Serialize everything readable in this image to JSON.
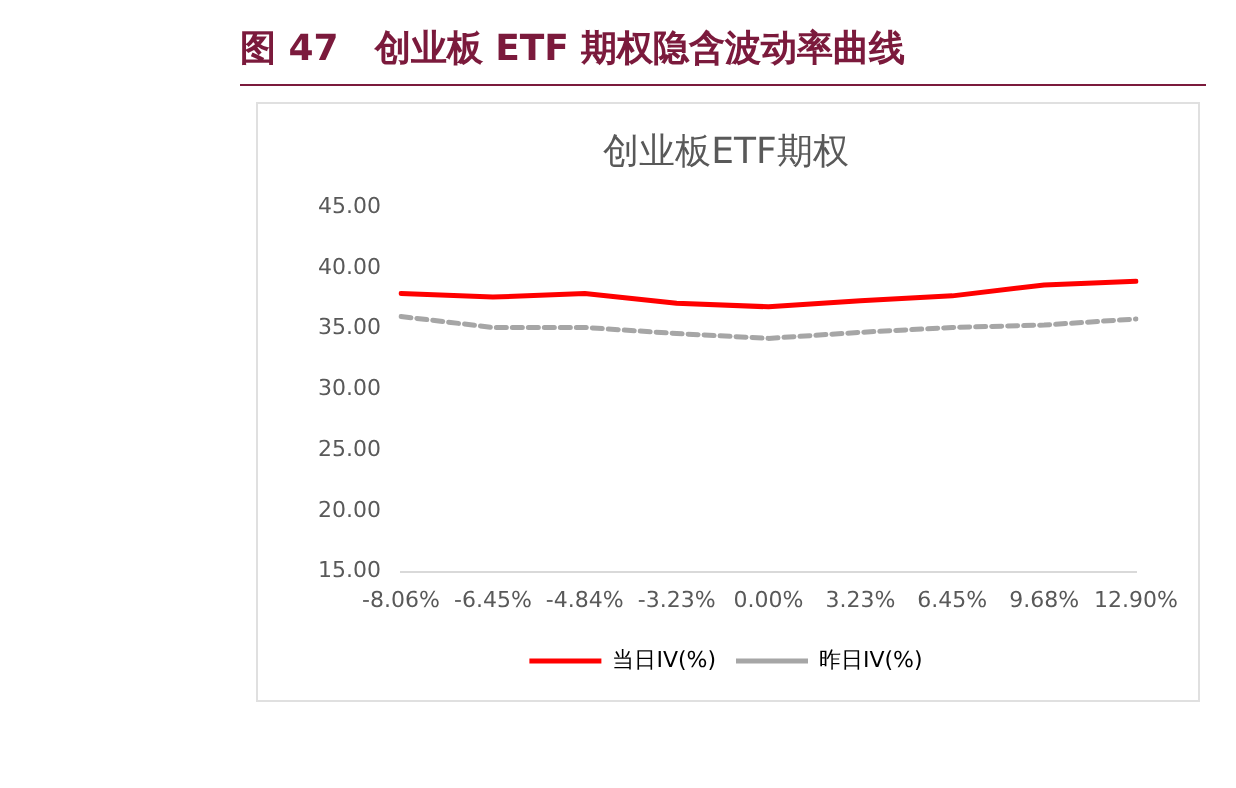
{
  "chart_data": {
    "type": "line",
    "title": "图 47　创业板 ETF 期权隐含波动率曲线",
    "subtitle": "创业板ETF期权",
    "categories": [
      "-8.06%",
      "-6.45%",
      "-4.84%",
      "-3.23%",
      "0.00%",
      "3.23%",
      "6.45%",
      "9.68%",
      "12.90%"
    ],
    "series": [
      {
        "name": "当日IV(%)",
        "color": "#ff0000",
        "line_style": "solid",
        "values": [
          37.9,
          37.6,
          37.9,
          37.1,
          36.8,
          37.3,
          37.7,
          38.6,
          38.9
        ]
      },
      {
        "name": "昨日IV(%)",
        "color": "#a6a6a6",
        "line_style": "dashed",
        "values": [
          36.0,
          35.1,
          35.1,
          34.6,
          34.2,
          34.7,
          35.1,
          35.3,
          35.8
        ]
      }
    ],
    "ylim": [
      15,
      45
    ],
    "yticks": [
      {
        "value": 15,
        "label": "15.00"
      },
      {
        "value": 20,
        "label": "20.00"
      },
      {
        "value": 25,
        "label": "25.00"
      },
      {
        "value": 30,
        "label": "30.00"
      },
      {
        "value": 35,
        "label": "35.00"
      },
      {
        "value": 40,
        "label": "40.00"
      },
      {
        "value": 45,
        "label": "45.00"
      }
    ],
    "grid": false,
    "legend": "bottom",
    "marker": "none"
  }
}
